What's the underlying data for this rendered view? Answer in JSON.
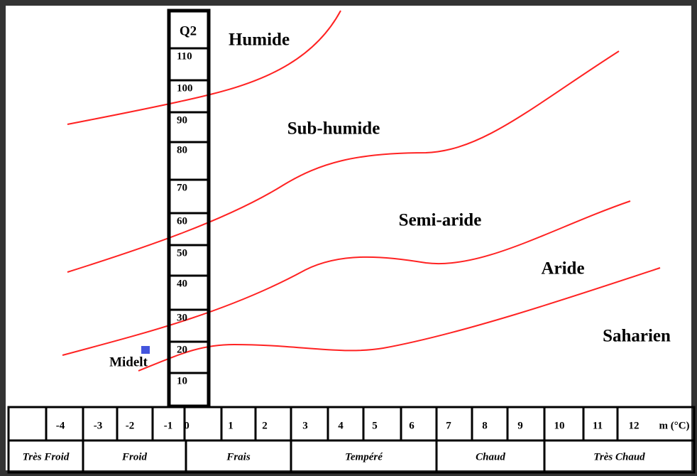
{
  "q2_axis": {
    "title": "Q2",
    "ticks": [
      "110",
      "100",
      "90",
      "80",
      "70",
      "60",
      "50",
      "40",
      "30",
      "20",
      "10"
    ]
  },
  "zones": [
    "Humide",
    "Sub-humide",
    "Semi-aride",
    "Aride",
    "Saharien"
  ],
  "station": "Midelt",
  "m_axis": {
    "ticks": [
      "-4",
      "-3",
      "-2",
      "-1",
      "0",
      "1",
      "2",
      "3",
      "4",
      "5",
      "6",
      "7",
      "8",
      "9",
      "10",
      "11",
      "12"
    ],
    "unit": "m (°C)"
  },
  "winter_types": [
    "Très Froid",
    "Froid",
    "Frais",
    "Tempéré",
    "Chaud",
    "Très Chaud"
  ]
}
